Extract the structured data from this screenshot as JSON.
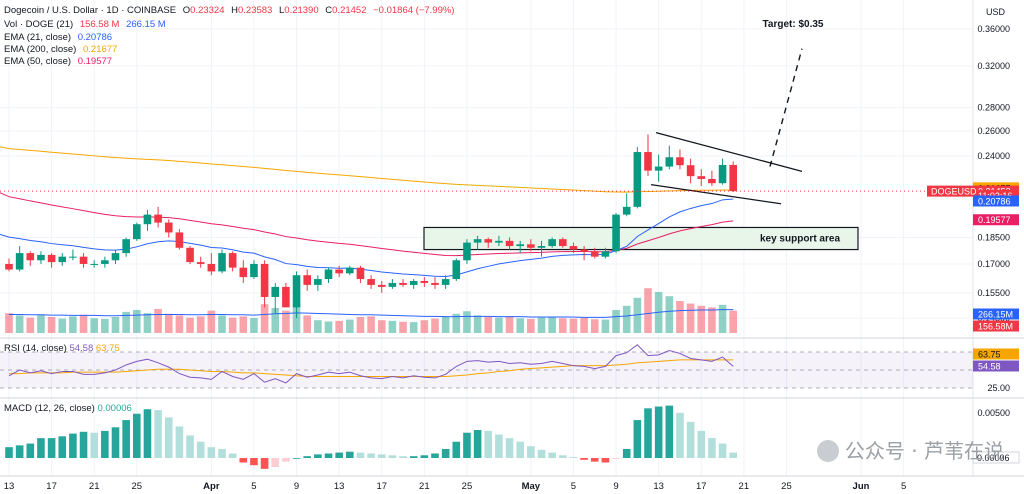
{
  "header": {
    "symbol_line": "Dogecoin / U.S. Dollar · 1D · COINBASE",
    "o_label": "O",
    "o": "0.23324",
    "h_label": "H",
    "h": "0.23583",
    "l_label": "L",
    "l": "0.21390",
    "c_label": "C",
    "c": "0.21452",
    "change": "−0.01864 (−7.99%)"
  },
  "indicators": [
    {
      "label": "Vol · DOGE (21)",
      "v1": "156.58 M",
      "v2": "266.15 M",
      "c1": "#f23645",
      "c2": "#2962ff"
    },
    {
      "label": "EMA (21, close)",
      "v1": "0.20786",
      "c1": "#2962ff"
    },
    {
      "label": "EMA (200, close)",
      "v1": "0.21677",
      "c1": "#f7a600"
    },
    {
      "label": "EMA (50, close)",
      "v1": "0.19577",
      "c1": "#e91e63"
    }
  ],
  "currency": "USD",
  "rsi": {
    "label": "RSI (14, close)",
    "v1": "54.58",
    "v2": "63.75",
    "c1": "#7e57c2",
    "c2": "#f7a600"
  },
  "macd": {
    "label": "MACD (12, 26, close)",
    "v1": "0.00006",
    "c1": "#26a69a"
  },
  "watermark": "公众号 · 芦苇在说",
  "chart_data": {
    "type": "candlestick",
    "price_ticks": [
      "0.36000",
      "0.32000",
      "0.28000",
      "0.26000",
      "0.24000",
      "0.18500",
      "0.17000",
      "0.15500",
      "0.14300"
    ],
    "price_levels": [
      0.36,
      0.32,
      0.28,
      0.26,
      0.24,
      0.185,
      0.17,
      0.155,
      0.143
    ],
    "price_badges": [
      {
        "text": "0.21677",
        "bg": "#f7a600",
        "fg": "#131722",
        "value": 0.21677
      },
      {
        "text": "0.21452",
        "bg": "#f23645",
        "fg": "#ffffff",
        "value": 0.21452
      },
      {
        "text": "11:03:16",
        "bg": "#f23645",
        "fg": "#ffffff",
        "value": 0.2115
      },
      {
        "text": "0.20786",
        "bg": "#2962ff",
        "fg": "#ffffff",
        "value": 0.20786
      },
      {
        "text": "0.19577",
        "bg": "#e91e63",
        "fg": "#ffffff",
        "value": 0.19577
      }
    ],
    "symbol_badge": "DOGEUSD",
    "volume_badges": [
      {
        "text": "266.15M",
        "bg": "#2962ff",
        "fg": "#ffffff"
      },
      {
        "text": "156.58M",
        "bg": "#f23645",
        "fg": "#ffffff"
      }
    ],
    "rsi_ticks": [
      "75.00",
      "25.00"
    ],
    "rsi_levels": [
      75,
      25
    ],
    "rsi_badges": [
      {
        "text": "63.75",
        "bg": "#f7a600",
        "fg": "#131722",
        "value": 63.75
      },
      {
        "text": "54.58",
        "bg": "#7e57c2",
        "fg": "#ffffff",
        "value": 54.58
      }
    ],
    "macd_ticks": [
      "0.00500"
    ],
    "macd_levels": [
      0.005
    ],
    "macd_badges": [
      {
        "text": "0.00006",
        "bg": "#ffffff",
        "fg": "#131722",
        "value": 6e-05
      }
    ],
    "x_labels": [
      {
        "i": 0,
        "text": "13"
      },
      {
        "i": 4,
        "text": "17"
      },
      {
        "i": 8,
        "text": "21"
      },
      {
        "i": 12,
        "text": "25"
      },
      {
        "i": 19,
        "text": "Apr",
        "bold": true
      },
      {
        "i": 23,
        "text": "5"
      },
      {
        "i": 27,
        "text": "9"
      },
      {
        "i": 31,
        "text": "13"
      },
      {
        "i": 35,
        "text": "17"
      },
      {
        "i": 39,
        "text": "21"
      },
      {
        "i": 43,
        "text": "25"
      },
      {
        "i": 49,
        "text": "May",
        "bold": true
      },
      {
        "i": 53,
        "text": "5"
      },
      {
        "i": 57,
        "text": "9"
      },
      {
        "i": 61,
        "text": "13"
      },
      {
        "i": 65,
        "text": "17"
      },
      {
        "i": 69,
        "text": "21"
      },
      {
        "i": 73,
        "text": "25"
      },
      {
        "i": 80,
        "text": "Jun",
        "bold": true
      },
      {
        "i": 84,
        "text": "5"
      }
    ],
    "annotations": {
      "target_label": "Target: $0.35",
      "support_label": "key support area",
      "support_zone": [
        0.178,
        0.191
      ]
    },
    "candles": [
      [
        0.17,
        0.173,
        0.166,
        0.167
      ],
      [
        0.167,
        0.18,
        0.166,
        0.176
      ],
      [
        0.176,
        0.177,
        0.169,
        0.172
      ],
      [
        0.172,
        0.177,
        0.17,
        0.175
      ],
      [
        0.175,
        0.176,
        0.168,
        0.171
      ],
      [
        0.171,
        0.176,
        0.169,
        0.174
      ],
      [
        0.174,
        0.178,
        0.172,
        0.174
      ],
      [
        0.174,
        0.176,
        0.168,
        0.17
      ],
      [
        0.17,
        0.172,
        0.168,
        0.17
      ],
      [
        0.17,
        0.174,
        0.168,
        0.172
      ],
      [
        0.172,
        0.178,
        0.17,
        0.176
      ],
      [
        0.176,
        0.185,
        0.174,
        0.184
      ],
      [
        0.184,
        0.194,
        0.183,
        0.193
      ],
      [
        0.193,
        0.202,
        0.189,
        0.199
      ],
      [
        0.199,
        0.204,
        0.191,
        0.194
      ],
      [
        0.194,
        0.196,
        0.185,
        0.188
      ],
      [
        0.188,
        0.19,
        0.178,
        0.179
      ],
      [
        0.179,
        0.18,
        0.17,
        0.171
      ],
      [
        0.171,
        0.174,
        0.168,
        0.17
      ],
      [
        0.17,
        0.176,
        0.164,
        0.166
      ],
      [
        0.166,
        0.178,
        0.165,
        0.176
      ],
      [
        0.176,
        0.177,
        0.166,
        0.168
      ],
      [
        0.168,
        0.172,
        0.16,
        0.163
      ],
      [
        0.163,
        0.172,
        0.162,
        0.17
      ],
      [
        0.17,
        0.172,
        0.148,
        0.153
      ],
      [
        0.153,
        0.16,
        0.145,
        0.158
      ],
      [
        0.158,
        0.16,
        0.148,
        0.148
      ],
      [
        0.148,
        0.166,
        0.143,
        0.164
      ],
      [
        0.164,
        0.167,
        0.156,
        0.159
      ],
      [
        0.159,
        0.164,
        0.156,
        0.162
      ],
      [
        0.162,
        0.168,
        0.16,
        0.167
      ],
      [
        0.167,
        0.169,
        0.163,
        0.165
      ],
      [
        0.165,
        0.169,
        0.164,
        0.168
      ],
      [
        0.168,
        0.169,
        0.16,
        0.162
      ],
      [
        0.162,
        0.164,
        0.157,
        0.159
      ],
      [
        0.159,
        0.161,
        0.155,
        0.158
      ],
      [
        0.158,
        0.162,
        0.157,
        0.16
      ],
      [
        0.16,
        0.162,
        0.158,
        0.159
      ],
      [
        0.159,
        0.162,
        0.157,
        0.161
      ],
      [
        0.161,
        0.163,
        0.158,
        0.16
      ],
      [
        0.16,
        0.163,
        0.157,
        0.159
      ],
      [
        0.159,
        0.164,
        0.157,
        0.162
      ],
      [
        0.162,
        0.173,
        0.161,
        0.172
      ],
      [
        0.172,
        0.184,
        0.17,
        0.182
      ],
      [
        0.182,
        0.186,
        0.178,
        0.184
      ],
      [
        0.184,
        0.185,
        0.179,
        0.182
      ],
      [
        0.182,
        0.186,
        0.18,
        0.183
      ],
      [
        0.183,
        0.185,
        0.178,
        0.18
      ],
      [
        0.18,
        0.183,
        0.176,
        0.181
      ],
      [
        0.181,
        0.184,
        0.177,
        0.179
      ],
      [
        0.179,
        0.183,
        0.174,
        0.18
      ],
      [
        0.18,
        0.185,
        0.179,
        0.184
      ],
      [
        0.184,
        0.185,
        0.179,
        0.18
      ],
      [
        0.18,
        0.182,
        0.176,
        0.178
      ],
      [
        0.178,
        0.18,
        0.172,
        0.177
      ],
      [
        0.177,
        0.179,
        0.173,
        0.174
      ],
      [
        0.174,
        0.179,
        0.173,
        0.177
      ],
      [
        0.177,
        0.2,
        0.176,
        0.199
      ],
      [
        0.199,
        0.213,
        0.198,
        0.204
      ],
      [
        0.204,
        0.247,
        0.203,
        0.243
      ],
      [
        0.243,
        0.257,
        0.225,
        0.229
      ],
      [
        0.229,
        0.241,
        0.221,
        0.232
      ],
      [
        0.232,
        0.248,
        0.23,
        0.239
      ],
      [
        0.239,
        0.245,
        0.23,
        0.233
      ],
      [
        0.233,
        0.238,
        0.22,
        0.225
      ],
      [
        0.225,
        0.23,
        0.218,
        0.223
      ],
      [
        0.223,
        0.229,
        0.218,
        0.22
      ],
      [
        0.22,
        0.238,
        0.219,
        0.2332
      ],
      [
        0.2332,
        0.2358,
        0.2139,
        0.2145
      ]
    ],
    "volume": [
      62,
      55,
      48,
      58,
      50,
      45,
      52,
      57,
      46,
      44,
      50,
      66,
      72,
      62,
      75,
      60,
      55,
      48,
      52,
      70,
      55,
      48,
      52,
      47,
      90,
      78,
      70,
      95,
      55,
      40,
      36,
      38,
      42,
      50,
      52,
      40,
      38,
      35,
      34,
      40,
      45,
      50,
      60,
      68,
      55,
      50,
      48,
      52,
      46,
      44,
      48,
      50,
      46,
      45,
      47,
      43,
      42,
      72,
      85,
      110,
      140,
      128,
      115,
      100,
      92,
      85,
      80,
      88,
      70
    ],
    "vol_ma": [
      58,
      58,
      57,
      57,
      56,
      56,
      55,
      55,
      55,
      54,
      54,
      55,
      56,
      57,
      58,
      58,
      58,
      57,
      57,
      58,
      58,
      57,
      57,
      56,
      58,
      60,
      61,
      63,
      62,
      61,
      60,
      59,
      58,
      57,
      57,
      56,
      55,
      54,
      53,
      52,
      52,
      51,
      51,
      52,
      52,
      52,
      51,
      51,
      51,
      50,
      50,
      50,
      50,
      50,
      49,
      49,
      49,
      51,
      53,
      57,
      61,
      65,
      68,
      70,
      71,
      72,
      72,
      73,
      73
    ],
    "rsi": [
      42,
      50,
      46,
      49,
      45,
      48,
      48,
      44,
      44,
      46,
      50,
      57,
      62,
      65,
      60,
      54,
      45,
      40,
      39,
      37,
      48,
      41,
      37,
      45,
      33,
      38,
      32,
      45,
      40,
      43,
      47,
      45,
      47,
      42,
      39,
      38,
      41,
      39,
      42,
      40,
      39,
      44,
      55,
      62,
      63,
      61,
      62,
      59,
      60,
      58,
      59,
      62,
      59,
      56,
      55,
      52,
      55,
      70,
      74,
      85,
      70,
      71,
      77,
      73,
      66,
      64,
      62,
      68,
      55
    ],
    "rsi_ma": [
      45,
      45,
      46,
      46,
      46,
      46,
      47,
      47,
      47,
      47,
      47,
      48,
      49,
      50,
      51,
      51,
      51,
      50,
      49,
      48,
      48,
      47,
      46,
      46,
      45,
      44,
      43,
      42,
      41,
      41,
      41,
      41,
      41,
      41,
      41,
      41,
      41,
      41,
      41,
      41,
      41,
      41,
      42,
      43,
      45,
      46,
      48,
      49,
      51,
      52,
      53,
      54,
      55,
      56,
      56,
      56,
      56,
      57,
      58,
      60,
      61,
      62,
      63,
      64,
      64,
      64,
      64,
      64,
      64
    ],
    "macd_hist": [
      0.0012,
      0.0014,
      0.0016,
      0.0022,
      0.0022,
      0.0024,
      0.0027,
      0.0029,
      0.0028,
      0.003,
      0.0034,
      0.0042,
      0.0049,
      0.0054,
      0.0053,
      0.0045,
      0.0035,
      0.0025,
      0.0018,
      0.0012,
      0.001,
      0.0005,
      -0.0005,
      -0.0008,
      -0.0012,
      -0.001,
      -0.0004,
      0.0,
      0.0002,
      0.0004,
      0.0005,
      0.0006,
      0.0007,
      0.0006,
      0.0005,
      0.0004,
      0.0003,
      0.0002,
      0.0002,
      0.0003,
      0.0005,
      0.001,
      0.0018,
      0.0028,
      0.0031,
      0.003,
      0.0026,
      0.0022,
      0.0018,
      0.0013,
      0.0009,
      0.0006,
      0.0003,
      0.0001,
      -0.0002,
      -0.0004,
      -0.0005,
      -0.0001,
      0.001,
      0.0042,
      0.0055,
      0.0057,
      0.0058,
      0.005,
      0.004,
      0.003,
      0.0022,
      0.0016,
      0.0006
    ]
  }
}
